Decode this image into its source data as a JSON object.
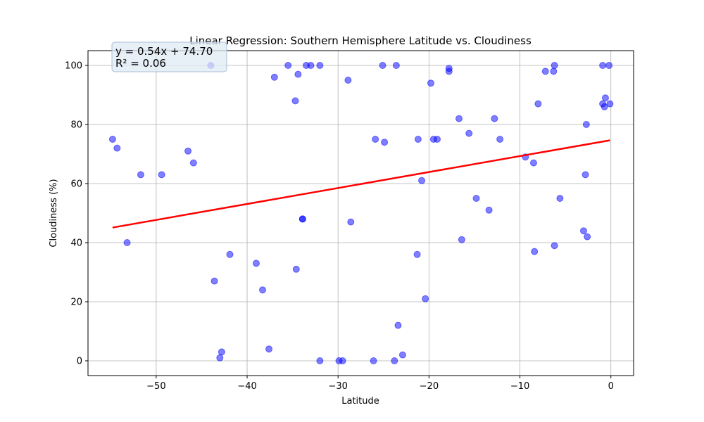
{
  "chart_data": {
    "type": "scatter",
    "title": "Linear Regression: Southern Hemisphere Latitude vs. Cloudiness",
    "xlabel": "Latitude",
    "ylabel": "Cloudiness (%)",
    "xlim": [
      -57.5,
      2.5
    ],
    "ylim": [
      -5,
      105
    ],
    "xticks": [
      -50,
      -40,
      -30,
      -20,
      -10,
      0
    ],
    "yticks": [
      0,
      20,
      40,
      60,
      80,
      100
    ],
    "xtick_labels": [
      "−50",
      "−40",
      "−30",
      "−20",
      "−10",
      "0"
    ],
    "ytick_labels": [
      "0",
      "20",
      "40",
      "60",
      "80",
      "100"
    ],
    "grid": true,
    "point_color": "#0000ff",
    "line_color": "#ff0000",
    "points": [
      [
        -54.8,
        75
      ],
      [
        -54.3,
        72
      ],
      [
        -53.2,
        40
      ],
      [
        -51.7,
        63
      ],
      [
        -49.4,
        63
      ],
      [
        -46.5,
        71
      ],
      [
        -45.9,
        67
      ],
      [
        -44.0,
        100
      ],
      [
        -43.6,
        27
      ],
      [
        -43.0,
        1
      ],
      [
        -42.8,
        3
      ],
      [
        -41.9,
        36
      ],
      [
        -39.0,
        33
      ],
      [
        -38.3,
        24
      ],
      [
        -37.6,
        4
      ],
      [
        -37.0,
        96
      ],
      [
        -35.5,
        100
      ],
      [
        -34.7,
        88
      ],
      [
        -34.6,
        31
      ],
      [
        -34.4,
        97
      ],
      [
        -33.9,
        48
      ],
      [
        -33.9,
        48
      ],
      [
        -33.5,
        100
      ],
      [
        -33.0,
        100
      ],
      [
        -32.0,
        100
      ],
      [
        -32.0,
        0
      ],
      [
        -29.9,
        0
      ],
      [
        -29.5,
        0
      ],
      [
        -28.9,
        95
      ],
      [
        -28.6,
        47
      ],
      [
        -26.1,
        0
      ],
      [
        -25.9,
        75
      ],
      [
        -25.1,
        100
      ],
      [
        -24.9,
        74
      ],
      [
        -23.8,
        0
      ],
      [
        -23.6,
        100
      ],
      [
        -23.4,
        12
      ],
      [
        -22.9,
        2
      ],
      [
        -21.3,
        36
      ],
      [
        -21.2,
        75
      ],
      [
        -20.8,
        61
      ],
      [
        -20.4,
        21
      ],
      [
        -19.8,
        94
      ],
      [
        -19.5,
        75
      ],
      [
        -19.1,
        75
      ],
      [
        -17.8,
        99
      ],
      [
        -17.8,
        98
      ],
      [
        -16.7,
        82
      ],
      [
        -16.4,
        41
      ],
      [
        -15.6,
        77
      ],
      [
        -14.8,
        55
      ],
      [
        -13.4,
        51
      ],
      [
        -12.8,
        82
      ],
      [
        -12.2,
        75
      ],
      [
        -9.4,
        69
      ],
      [
        -8.5,
        67
      ],
      [
        -8.4,
        37
      ],
      [
        -8.0,
        87
      ],
      [
        -7.2,
        98
      ],
      [
        -6.3,
        98
      ],
      [
        -6.2,
        100
      ],
      [
        -6.2,
        39
      ],
      [
        -5.6,
        55
      ],
      [
        -3.0,
        44
      ],
      [
        -2.8,
        63
      ],
      [
        -2.7,
        80
      ],
      [
        -2.6,
        42
      ],
      [
        -0.9,
        100
      ],
      [
        -0.9,
        87
      ],
      [
        -0.7,
        86
      ],
      [
        -0.6,
        89
      ],
      [
        -0.2,
        100
      ],
      [
        -0.1,
        87
      ]
    ],
    "regression": {
      "slope": 0.54,
      "intercept": 74.7,
      "x_range": [
        -54.8,
        -0.1
      ],
      "equation": "y = 0.54x + 74.70",
      "r_squared": "R² = 0.06"
    }
  }
}
